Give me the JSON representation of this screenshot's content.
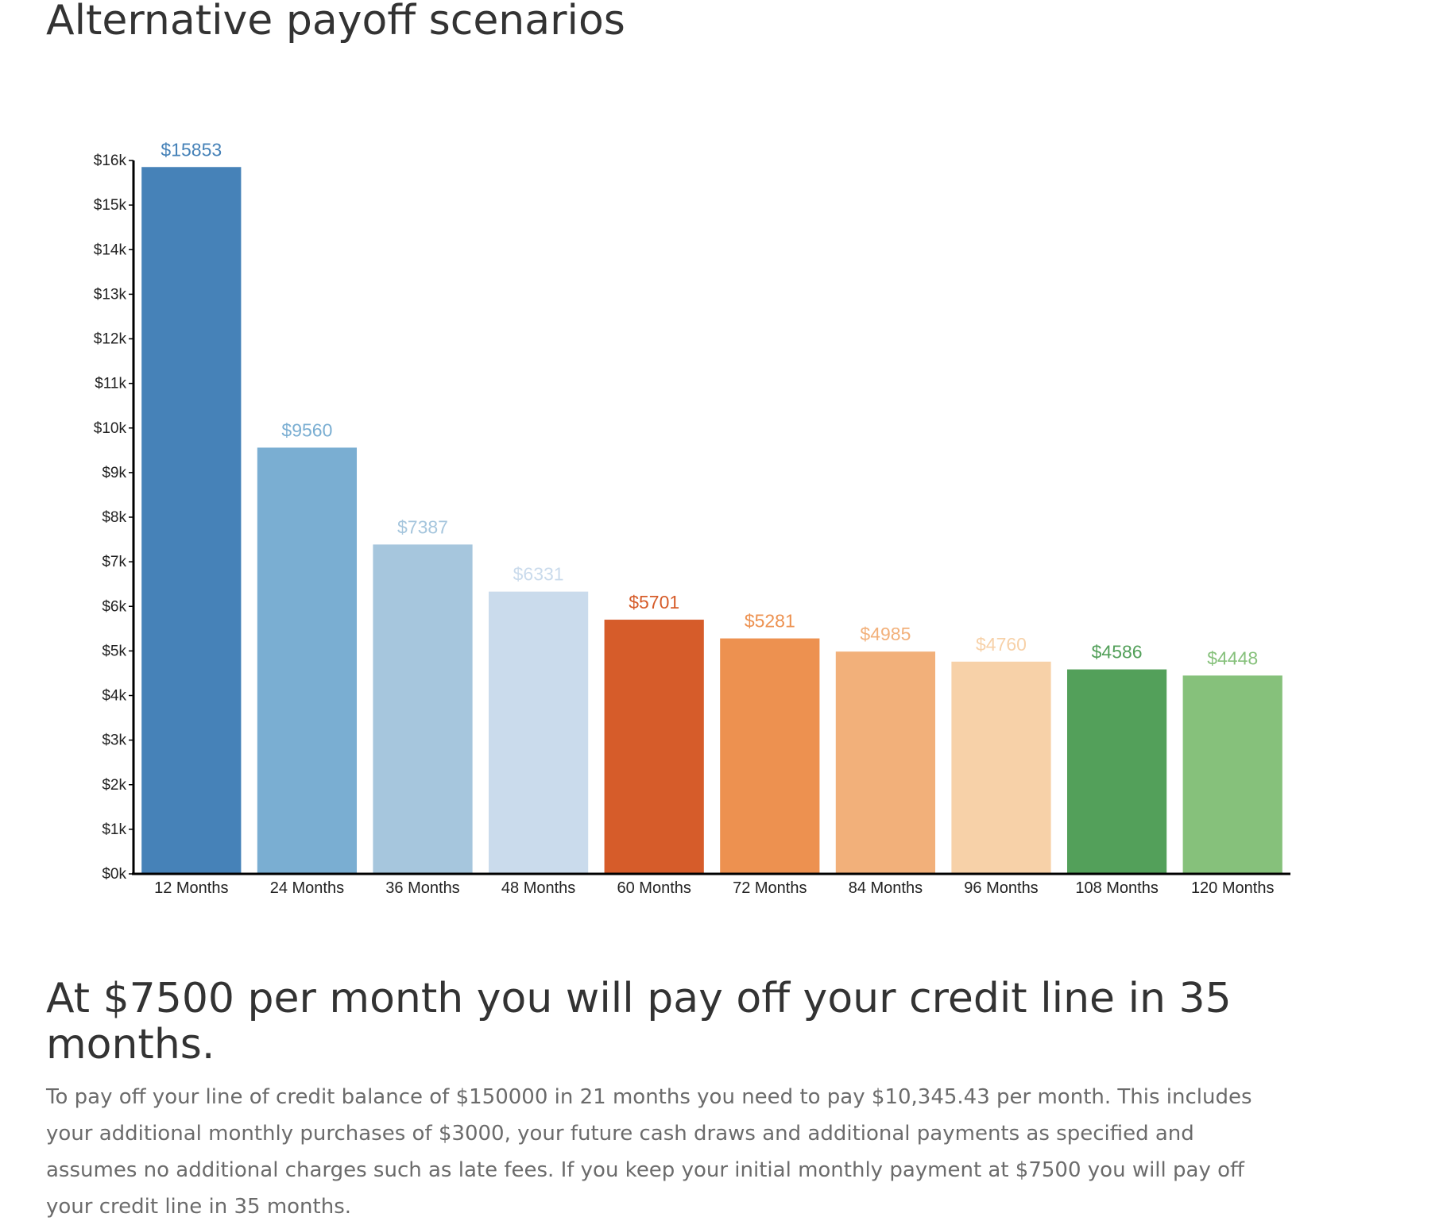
{
  "page": {
    "title": "Alternative payoff scenarios",
    "headline": "At $7500 per month you will pay off your credit line in 35 months.",
    "description": "To pay off your line of credit balance of $150000 in 21 months you need to pay $10,345.43 per month. This includes your additional monthly purchases of $3000, your future cash draws and additional payments as specified and assumes no additional charges such as late fees. If you keep your initial monthly payment at $7500 you will pay off your credit line in 35 months."
  },
  "chart_data": {
    "type": "bar",
    "title": "",
    "xlabel": "",
    "ylabel": "",
    "categories": [
      "12 Months",
      "24 Months",
      "36 Months",
      "48 Months",
      "60 Months",
      "72 Months",
      "84 Months",
      "96 Months",
      "108 Months",
      "120 Months"
    ],
    "values": [
      15853,
      9560,
      7387,
      6331,
      5701,
      5281,
      4985,
      4760,
      4586,
      4448
    ],
    "value_labels": [
      "$15853",
      "$9560",
      "$7387",
      "$6331",
      "$5701",
      "$5281",
      "$4985",
      "$4760",
      "$4586",
      "$4448"
    ],
    "colors": [
      "#4682b8",
      "#7aaed2",
      "#a6c6dd",
      "#cadbec",
      "#d65c2a",
      "#ed9150",
      "#f2b07a",
      "#f7d1a8",
      "#53a05a",
      "#86c17b"
    ],
    "label_colors": [
      "#4682b8",
      "#7aaed2",
      "#a6c6dd",
      "#cadbec",
      "#d65c2a",
      "#ed9150",
      "#f2b07a",
      "#f7d1a8",
      "#53a05a",
      "#86c17b"
    ],
    "ylim": [
      0,
      16000
    ],
    "yticks": [
      0,
      1000,
      2000,
      3000,
      4000,
      5000,
      6000,
      7000,
      8000,
      9000,
      10000,
      11000,
      12000,
      13000,
      14000,
      15000,
      16000
    ],
    "ytick_labels": [
      "$0k",
      "$1k",
      "$2k",
      "$3k",
      "$4k",
      "$5k",
      "$6k",
      "$7k",
      "$8k",
      "$9k",
      "$10k",
      "$11k",
      "$12k",
      "$13k",
      "$14k",
      "$15k",
      "$16k"
    ],
    "grid": false,
    "legend": "none"
  }
}
